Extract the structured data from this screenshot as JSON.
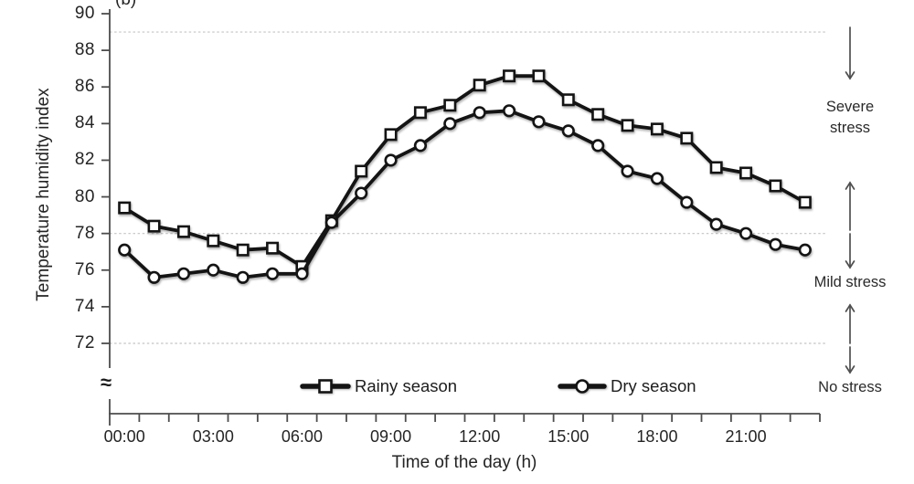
{
  "figure_label": "(b)",
  "chart_data": {
    "type": "line",
    "title": "",
    "xlabel": "Time of the day (h)",
    "ylabel": "Temperature humidity index",
    "x_hours": [
      0,
      1,
      2,
      3,
      4,
      5,
      6,
      7,
      8,
      9,
      10,
      11,
      12,
      13,
      14,
      15,
      16,
      17,
      18,
      19,
      20,
      21,
      22,
      23
    ],
    "x_tick_hours": [
      0,
      3,
      6,
      9,
      12,
      15,
      18,
      21
    ],
    "x_tick_labels": [
      "00:00",
      "03:00",
      "06:00",
      "09:00",
      "12:00",
      "15:00",
      "18:00",
      "21:00"
    ],
    "xlim_hours": [
      0,
      24
    ],
    "y_ticks": [
      90,
      88,
      86,
      84,
      82,
      80,
      78,
      76,
      74,
      72
    ],
    "ylim": [
      72,
      90
    ],
    "dashed_gridlines": [
      89,
      78,
      72
    ],
    "axis_break_symbol": "≈",
    "grid": "horizontal-dashed-thresholds-only",
    "legend_position": "bottom-inside",
    "series": [
      {
        "name": "Rainy season",
        "marker": "square",
        "values": [
          79.4,
          78.4,
          78.1,
          77.6,
          77.1,
          77.2,
          76.2,
          78.7,
          81.4,
          83.4,
          84.6,
          85.0,
          86.1,
          86.6,
          86.6,
          85.3,
          84.5,
          83.9,
          83.7,
          83.2,
          81.6,
          81.3,
          80.6,
          79.7
        ]
      },
      {
        "name": "Dry season",
        "marker": "circle",
        "values": [
          77.1,
          75.6,
          75.8,
          76.0,
          75.6,
          75.8,
          75.8,
          78.6,
          80.2,
          82.0,
          82.8,
          84.0,
          84.6,
          84.7,
          84.1,
          83.6,
          82.8,
          81.4,
          81.0,
          79.7,
          78.5,
          78.0,
          77.4,
          77.1
        ]
      }
    ]
  },
  "stress_zones": [
    {
      "label": "Severe stress"
    },
    {
      "label": "Mild stress"
    },
    {
      "label": "No stress"
    }
  ],
  "colors": {
    "line": "#141414",
    "marker_fill": "#ffffff",
    "grid_dashed": "#c3c3c3",
    "axis": "#4d4d4d",
    "text": "#242424",
    "background": "#ffffff"
  }
}
